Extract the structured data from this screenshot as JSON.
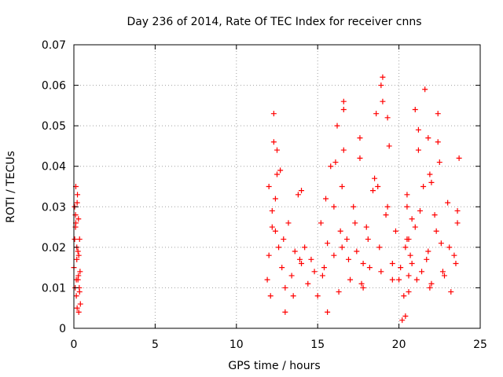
{
  "chart_data": {
    "type": "scatter",
    "title": "Day 236 of 2014, Rate Of TEC Index for receiver cnns",
    "xlabel": "GPS time / hours",
    "ylabel": "ROTI / TECUs",
    "xlim": [
      0,
      25
    ],
    "ylim": [
      0,
      0.07
    ],
    "xticks": [
      0,
      5,
      10,
      15,
      20,
      25
    ],
    "yticks": [
      0,
      0.01,
      0.02,
      0.03,
      0.04,
      0.05,
      0.06,
      0.07
    ],
    "xtick_labels": [
      "0",
      "5",
      "10",
      "15",
      "20",
      "25"
    ],
    "ytick_labels": [
      "0",
      "0.01",
      "0.02",
      "0.03",
      "0.04",
      "0.05",
      "0.06",
      "0.07"
    ],
    "grid": true,
    "marker": "+",
    "colors": {
      "series": "#ff0000",
      "grid": "#a0a0a0",
      "axes": "#000000"
    },
    "series": [
      {
        "x": [
          0.0,
          0.05,
          0.08,
          0.1,
          0.12,
          0.15,
          0.18,
          0.2,
          0.22,
          0.25,
          0.28,
          0.3,
          0.33,
          0.35,
          0.38,
          0.4,
          0.1,
          0.2,
          0.3,
          0.15,
          0.25,
          0.35,
          0.05,
          0.18,
          0.28,
          0.12,
          11.9,
          12.0,
          12.1,
          12.2,
          12.3,
          12.4,
          12.5,
          12.6,
          12.7,
          12.8,
          12.9,
          13.0,
          13.2,
          13.4,
          13.6,
          13.8,
          14.0,
          14.2,
          14.4,
          14.6,
          14.8,
          12.0,
          12.2,
          12.3,
          12.4,
          12.5,
          13.0,
          13.5,
          13.9,
          14.0,
          15.0,
          15.2,
          15.4,
          15.5,
          15.6,
          15.8,
          16.0,
          16.2,
          16.4,
          16.5,
          16.6,
          16.8,
          17.0,
          17.2,
          17.4,
          17.6,
          17.8,
          18.0,
          18.2,
          18.4,
          18.6,
          18.8,
          19.0,
          19.2,
          19.4,
          19.6,
          19.8,
          15.3,
          15.6,
          16.0,
          16.3,
          16.6,
          16.9,
          17.3,
          17.7,
          18.1,
          18.5,
          18.9,
          19.3,
          19.6,
          16.1,
          16.6,
          17.6,
          18.9,
          19.0,
          19.3,
          16.5,
          17.8,
          18.7,
          20.0,
          20.2,
          20.4,
          20.5,
          20.6,
          20.8,
          21.0,
          21.2,
          21.4,
          21.5,
          21.6,
          21.8,
          22.0,
          22.2,
          22.4,
          22.6,
          22.8,
          23.0,
          23.2,
          23.4,
          23.6,
          23.7,
          20.1,
          20.3,
          20.5,
          20.7,
          21.1,
          21.3,
          21.7,
          21.9,
          22.3,
          22.7,
          23.1,
          23.5,
          20.4,
          20.5,
          20.6,
          20.8,
          21.0,
          21.2,
          21.8,
          22.0,
          22.4,
          22.5,
          23.6,
          20.6,
          21.9
        ],
        "y": [
          0.015,
          0.03,
          0.01,
          0.025,
          0.035,
          0.008,
          0.02,
          0.005,
          0.033,
          0.012,
          0.027,
          0.018,
          0.01,
          0.022,
          0.014,
          0.006,
          0.028,
          0.031,
          0.004,
          0.012,
          0.019,
          0.009,
          0.022,
          0.017,
          0.013,
          0.026,
          0.012,
          0.018,
          0.008,
          0.025,
          0.053,
          0.032,
          0.044,
          0.02,
          0.039,
          0.015,
          0.022,
          0.01,
          0.026,
          0.013,
          0.019,
          0.033,
          0.016,
          0.02,
          0.011,
          0.017,
          0.014,
          0.035,
          0.029,
          0.046,
          0.024,
          0.038,
          0.004,
          0.008,
          0.017,
          0.034,
          0.008,
          0.026,
          0.015,
          0.032,
          0.004,
          0.04,
          0.018,
          0.05,
          0.024,
          0.035,
          0.056,
          0.022,
          0.012,
          0.03,
          0.019,
          0.047,
          0.01,
          0.025,
          0.015,
          0.034,
          0.053,
          0.02,
          0.062,
          0.028,
          0.045,
          0.016,
          0.024,
          0.013,
          0.021,
          0.03,
          0.009,
          0.044,
          0.017,
          0.026,
          0.011,
          0.022,
          0.037,
          0.014,
          0.03,
          0.012,
          0.041,
          0.054,
          0.042,
          0.06,
          0.056,
          0.052,
          0.02,
          0.016,
          0.035,
          0.012,
          0.002,
          0.02,
          0.03,
          0.009,
          0.016,
          0.025,
          0.049,
          0.014,
          0.035,
          0.059,
          0.019,
          0.011,
          0.028,
          0.046,
          0.021,
          0.013,
          0.031,
          0.009,
          0.018,
          0.026,
          0.042,
          0.015,
          0.008,
          0.022,
          0.018,
          0.012,
          0.029,
          0.017,
          0.01,
          0.024,
          0.014,
          0.02,
          0.016,
          0.003,
          0.033,
          0.013,
          0.027,
          0.054,
          0.044,
          0.047,
          0.036,
          0.053,
          0.041,
          0.029,
          0.022,
          0.038
        ]
      }
    ]
  }
}
